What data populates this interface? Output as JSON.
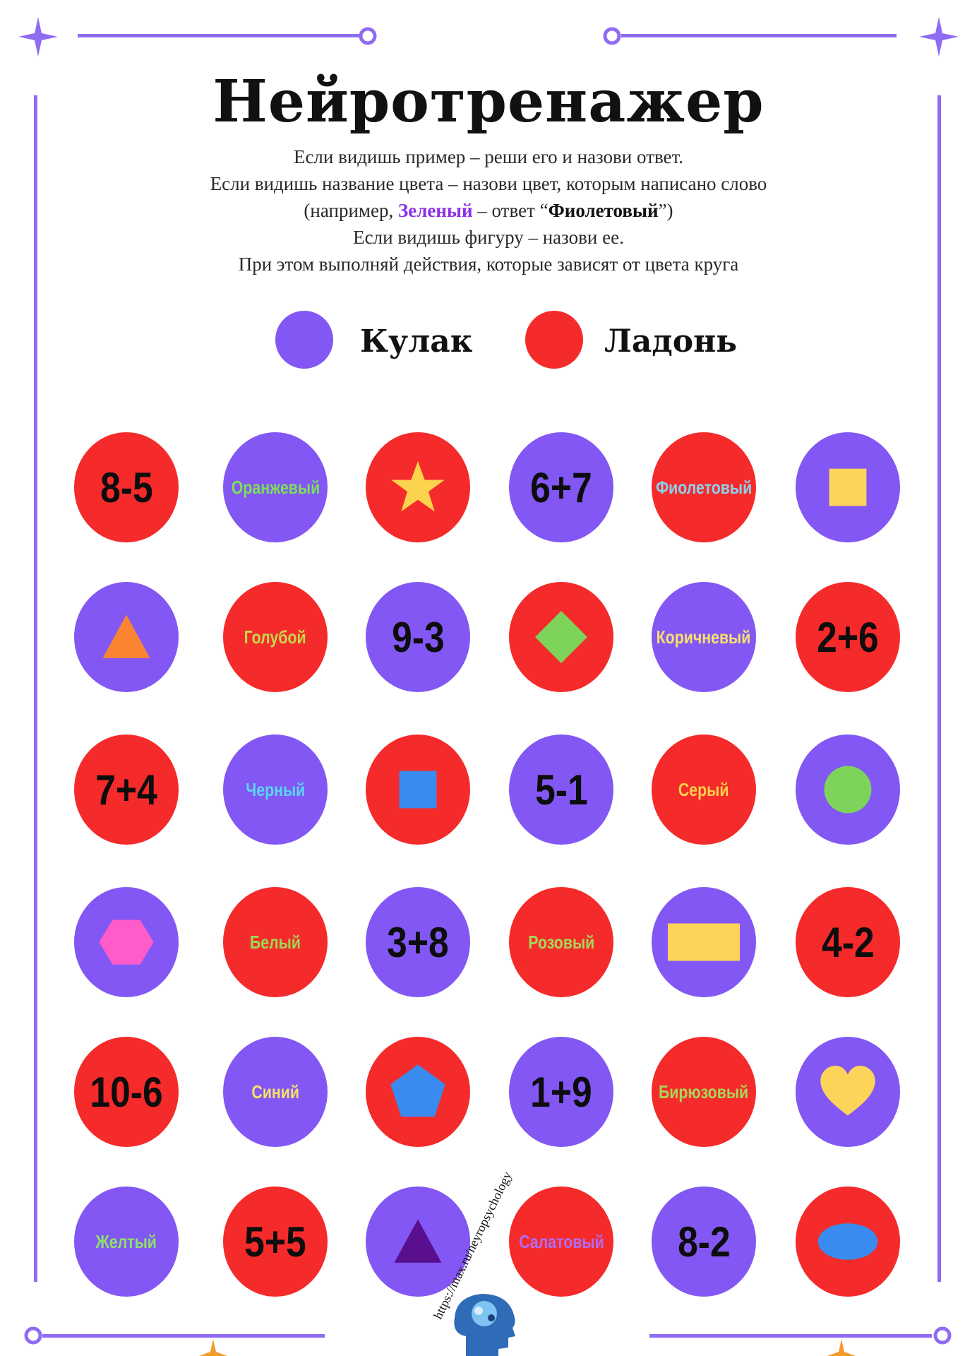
{
  "header": {
    "title": "Нейротренажер"
  },
  "instructions": {
    "line1": "Если видишь пример – реши его и назови ответ.",
    "line2": "Если видишь название цвета – назови цвет, которым написано слово",
    "line3_prefix": "(например, ",
    "line3_word": "Зеленый",
    "line3_middle": " – ответ “",
    "line3_answer": "Фиолетовый",
    "line3_suffix": "”)",
    "line4": "Если видишь фигуру – назови ее.",
    "line5": "При этом выполняй действия, которые зависят от цвета круга"
  },
  "legend": {
    "purple_label": "Кулак",
    "red_label": "Ладонь",
    "purple_color": "#8257f4",
    "red_color": "#f52a2a"
  },
  "colors": {
    "purple": "#8257f4",
    "red": "#f52a2a",
    "frame": "#8f6cf2"
  },
  "grid": [
    [
      {
        "bg": "red",
        "kind": "expr",
        "text": "8-5"
      },
      {
        "bg": "purple",
        "kind": "word",
        "text": "Оранжевый",
        "color": "#7ddf5a"
      },
      {
        "bg": "red",
        "kind": "shape",
        "shape": "star-icon",
        "fill": "#fcd34d"
      },
      {
        "bg": "purple",
        "kind": "expr",
        "text": "6+7"
      },
      {
        "bg": "red",
        "kind": "word",
        "text": "Фиолетовый",
        "color": "#8ad2f0"
      },
      {
        "bg": "purple",
        "kind": "shape",
        "shape": "square-icon",
        "fill": "#fcd45a"
      }
    ],
    [
      {
        "bg": "purple",
        "kind": "shape",
        "shape": "triangle-icon",
        "fill": "#f98533"
      },
      {
        "bg": "red",
        "kind": "word",
        "text": "Голубой",
        "color": "#c5d84d"
      },
      {
        "bg": "purple",
        "kind": "expr",
        "text": "9-3"
      },
      {
        "bg": "red",
        "kind": "shape",
        "shape": "diamond-icon",
        "fill": "#7ed45a"
      },
      {
        "bg": "purple",
        "kind": "word",
        "text": "Коричневый",
        "color": "#f7e06a"
      },
      {
        "bg": "red",
        "kind": "expr",
        "text": "2+6"
      }
    ],
    [
      {
        "bg": "red",
        "kind": "expr",
        "text": "7+4"
      },
      {
        "bg": "purple",
        "kind": "word",
        "text": "Черный",
        "color": "#5ad6f2"
      },
      {
        "bg": "red",
        "kind": "shape",
        "shape": "square-icon",
        "fill": "#3a8bef"
      },
      {
        "bg": "purple",
        "kind": "expr",
        "text": "5-1"
      },
      {
        "bg": "red",
        "kind": "word",
        "text": "Серый",
        "color": "#f8d04e"
      },
      {
        "bg": "purple",
        "kind": "shape",
        "shape": "circle-icon",
        "fill": "#7ed45a"
      }
    ],
    [
      {
        "bg": "purple",
        "kind": "shape",
        "shape": "hexagon-icon",
        "fill": "#ff5cc9"
      },
      {
        "bg": "red",
        "kind": "word",
        "text": "Белый",
        "color": "#9bd854"
      },
      {
        "bg": "purple",
        "kind": "expr",
        "text": "3+8"
      },
      {
        "bg": "red",
        "kind": "word",
        "text": "Розовый",
        "color": "#a8d65a"
      },
      {
        "bg": "purple",
        "kind": "shape",
        "shape": "rectangle-icon",
        "fill": "#fcd45a"
      },
      {
        "bg": "red",
        "kind": "expr",
        "text": "4-2"
      }
    ],
    [
      {
        "bg": "red",
        "kind": "expr",
        "text": "10-6"
      },
      {
        "bg": "purple",
        "kind": "word",
        "text": "Синий",
        "color": "#f7e06a"
      },
      {
        "bg": "red",
        "kind": "shape",
        "shape": "pentagon-icon",
        "fill": "#3a8bef"
      },
      {
        "bg": "purple",
        "kind": "expr",
        "text": "1+9"
      },
      {
        "bg": "red",
        "kind": "word",
        "text": "Бирюзовый",
        "color": "#a8d65a"
      },
      {
        "bg": "purple",
        "kind": "shape",
        "shape": "heart-icon",
        "fill": "#fcd45a"
      }
    ],
    [
      {
        "bg": "purple",
        "kind": "word",
        "text": "Желтый",
        "color": "#8fe06a"
      },
      {
        "bg": "red",
        "kind": "expr",
        "text": "5+5"
      },
      {
        "bg": "purple",
        "kind": "shape",
        "shape": "triangle-icon",
        "fill": "#5a0f8f"
      },
      {
        "bg": "red",
        "kind": "word",
        "text": "Салатовый",
        "color": "#b16cf2"
      },
      {
        "bg": "purple",
        "kind": "expr",
        "text": "8-2"
      },
      {
        "bg": "red",
        "kind": "shape",
        "shape": "ellipse-icon",
        "fill": "#3a8bef"
      }
    ]
  ],
  "footer": {
    "url": "https://max.ru/neyropsychology",
    "logo": "brain-head-logo"
  }
}
